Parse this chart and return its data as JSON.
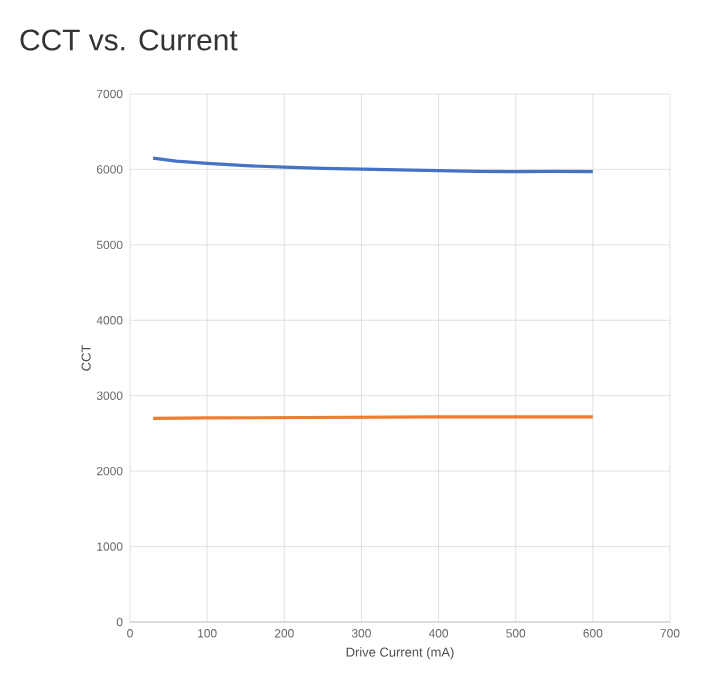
{
  "chart_data": {
    "type": "line",
    "title": "CCT vs. Current",
    "xlabel": "Drive Current (mA)",
    "ylabel": "CCT",
    "xlim": [
      0,
      700
    ],
    "xticks": [
      0,
      100,
      200,
      300,
      400,
      500,
      600,
      700
    ],
    "ylim": [
      0,
      7000
    ],
    "yticks": [
      0,
      1000,
      2000,
      3000,
      4000,
      5000,
      6000,
      7000
    ],
    "grid": true,
    "marker": "none",
    "line_style": "solid",
    "series": [
      {
        "color": "#4472c4",
        "x": [
          30,
          60,
          100,
          150,
          200,
          250,
          300,
          350,
          400,
          450,
          500,
          550,
          600
        ],
        "values": [
          6150,
          6110,
          6080,
          6050,
          6030,
          6015,
          6005,
          5995,
          5985,
          5975,
          5970,
          5975,
          5970
        ]
      },
      {
        "color": "#ed7d31",
        "x": [
          30,
          100,
          200,
          300,
          400,
          500,
          600
        ],
        "values": [
          2700,
          2705,
          2710,
          2715,
          2720,
          2720,
          2720
        ]
      }
    ]
  }
}
